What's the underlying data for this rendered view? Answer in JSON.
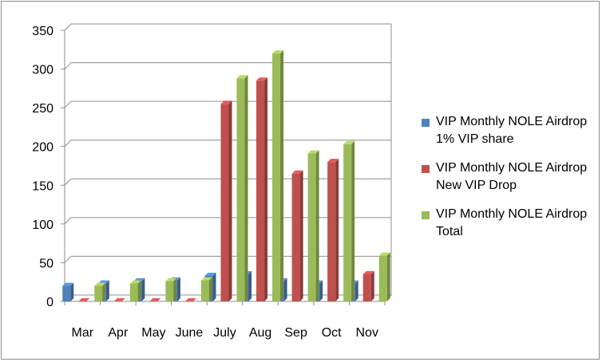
{
  "chart_data": {
    "type": "bar",
    "title": "",
    "xlabel": "",
    "ylabel": "",
    "categories": [
      "Mar",
      "Apr",
      "May",
      "June",
      "July",
      "Aug",
      "Sep",
      "Oct",
      "Nov"
    ],
    "series": [
      {
        "name": "VIP Monthly NOLE Airdrop 1% VIP share",
        "values": [
          20,
          23,
          26,
          27,
          33,
          35,
          26,
          23,
          23
        ],
        "color": "#4f81bd"
      },
      {
        "name": "VIP Monthly NOLE Airdrop New VIP Drop",
        "values": [
          0,
          0,
          0,
          0,
          255,
          285,
          165,
          180,
          35
        ],
        "color": "#c0504d"
      },
      {
        "name": "VIP Monthly NOLE Airdrop Total",
        "values": [
          20,
          23,
          26,
          27,
          288,
          320,
          191,
          203,
          59
        ],
        "color": "#9bbb59"
      }
    ],
    "ylim": [
      0,
      350
    ],
    "yticks": [
      0,
      50,
      100,
      150,
      200,
      250,
      300,
      350
    ],
    "grid": true,
    "legend": "right"
  }
}
